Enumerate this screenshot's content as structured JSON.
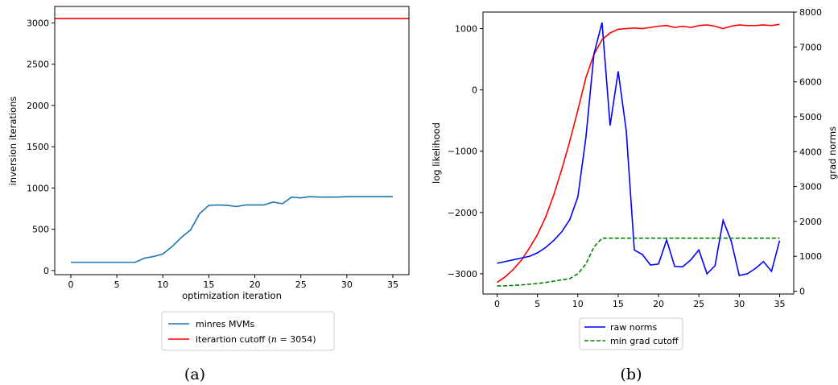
{
  "chart_data": [
    {
      "type": "line",
      "panel_caption": "(a)",
      "xlabel": "optimization iteration",
      "ylabel": "inversion iterations",
      "xlim": [
        -1.75,
        36.75
      ],
      "ylim": [
        -50,
        3200
      ],
      "xticks": [
        0,
        5,
        10,
        15,
        20,
        25,
        30,
        35
      ],
      "yticks": [
        0,
        500,
        1000,
        1500,
        2000,
        2500,
        3000
      ],
      "grid": false,
      "legend_position": "below",
      "legend_label_prefix": "iterartion cutoff (",
      "legend_label_math": "n",
      "legend_label_suffix": " = 3054)",
      "series": [
        {
          "name": "minres MVMs",
          "color": "#1f77b4",
          "style": "solid",
          "x": [
            0,
            1,
            2,
            3,
            4,
            5,
            6,
            7,
            8,
            9,
            10,
            11,
            12,
            13,
            14,
            15,
            16,
            17,
            18,
            19,
            20,
            21,
            22,
            23,
            24,
            25,
            26,
            27,
            28,
            29,
            30,
            31,
            32,
            33,
            34,
            35
          ],
          "y": [
            100,
            100,
            100,
            100,
            100,
            100,
            100,
            100,
            150,
            170,
            200,
            290,
            400,
            490,
            690,
            790,
            795,
            790,
            775,
            795,
            795,
            795,
            830,
            810,
            890,
            880,
            895,
            890,
            890,
            890,
            895,
            895,
            895,
            895,
            895,
            895
          ]
        },
        {
          "name": "iterartion cutoff (n = 3054)",
          "color": "#ff0000",
          "style": "solid",
          "horizontal_line": 3054
        }
      ]
    },
    {
      "type": "line",
      "panel_caption": "(b)",
      "xlim": [
        -1.75,
        36.75
      ],
      "xticks": [
        0,
        5,
        10,
        15,
        20,
        25,
        30,
        35
      ],
      "grid": false,
      "legend_position": "below",
      "left_axis": {
        "label": "log likelihood",
        "color": "#ff0000",
        "lim": [
          -3330,
          1270
        ],
        "ticks": [
          1000,
          0,
          -1000,
          -2000,
          -3000
        ],
        "tick_labels": [
          "1000",
          "0",
          "−1000",
          "−2000",
          "−3000"
        ]
      },
      "right_axis": {
        "label": "grad norms",
        "color": "#0000ff",
        "lim": [
          -80,
          8000
        ],
        "ticks": [
          0,
          1000,
          2000,
          3000,
          4000,
          5000,
          6000,
          7000,
          8000
        ]
      },
      "series": [
        {
          "name": "log likelihood",
          "axis": "left",
          "color": "#ff0000",
          "style": "solid",
          "legend": false,
          "x": [
            0,
            1,
            2,
            3,
            4,
            5,
            6,
            7,
            8,
            9,
            10,
            11,
            12,
            13,
            14,
            15,
            16,
            17,
            18,
            19,
            20,
            21,
            22,
            23,
            24,
            25,
            26,
            27,
            28,
            29,
            30,
            31,
            32,
            33,
            34,
            35
          ],
          "y": [
            -3140,
            -3050,
            -2930,
            -2780,
            -2580,
            -2360,
            -2080,
            -1720,
            -1300,
            -840,
            -330,
            200,
            580,
            820,
            930,
            990,
            1000,
            1010,
            1000,
            1020,
            1040,
            1050,
            1020,
            1040,
            1020,
            1050,
            1060,
            1040,
            1000,
            1040,
            1060,
            1050,
            1050,
            1060,
            1050,
            1070
          ]
        },
        {
          "name": "raw norms",
          "axis": "right",
          "color": "#0000ff",
          "style": "solid",
          "x": [
            0,
            1,
            2,
            3,
            4,
            5,
            6,
            7,
            8,
            9,
            10,
            11,
            12,
            13,
            14,
            15,
            16,
            17,
            18,
            19,
            20,
            21,
            22,
            23,
            24,
            25,
            26,
            27,
            28,
            29,
            30,
            31,
            32,
            33,
            34,
            35
          ],
          "y": [
            800,
            850,
            900,
            950,
            1000,
            1100,
            1250,
            1450,
            1700,
            2050,
            2700,
            4400,
            6800,
            7700,
            4750,
            6300,
            4600,
            1180,
            1050,
            750,
            780,
            1470,
            710,
            700,
            900,
            1180,
            500,
            730,
            2030,
            1440,
            450,
            500,
            650,
            850,
            570,
            1450
          ]
        },
        {
          "name": "min grad cutoff",
          "axis": "right",
          "color": "#008000",
          "style": "dashed",
          "x": [
            0,
            1,
            2,
            3,
            4,
            5,
            6,
            7,
            8,
            9,
            10,
            11,
            12,
            13,
            14,
            15,
            16,
            17,
            18,
            19,
            20,
            21,
            22,
            23,
            24,
            25,
            26,
            27,
            28,
            29,
            30,
            31,
            32,
            33,
            34,
            35
          ],
          "y": [
            150,
            155,
            165,
            180,
            200,
            220,
            250,
            285,
            325,
            360,
            500,
            780,
            1270,
            1520,
            1520,
            1520,
            1520,
            1520,
            1520,
            1520,
            1520,
            1520,
            1520,
            1520,
            1520,
            1520,
            1520,
            1520,
            1520,
            1520,
            1520,
            1520,
            1520,
            1520,
            1520,
            1520
          ]
        }
      ]
    }
  ]
}
